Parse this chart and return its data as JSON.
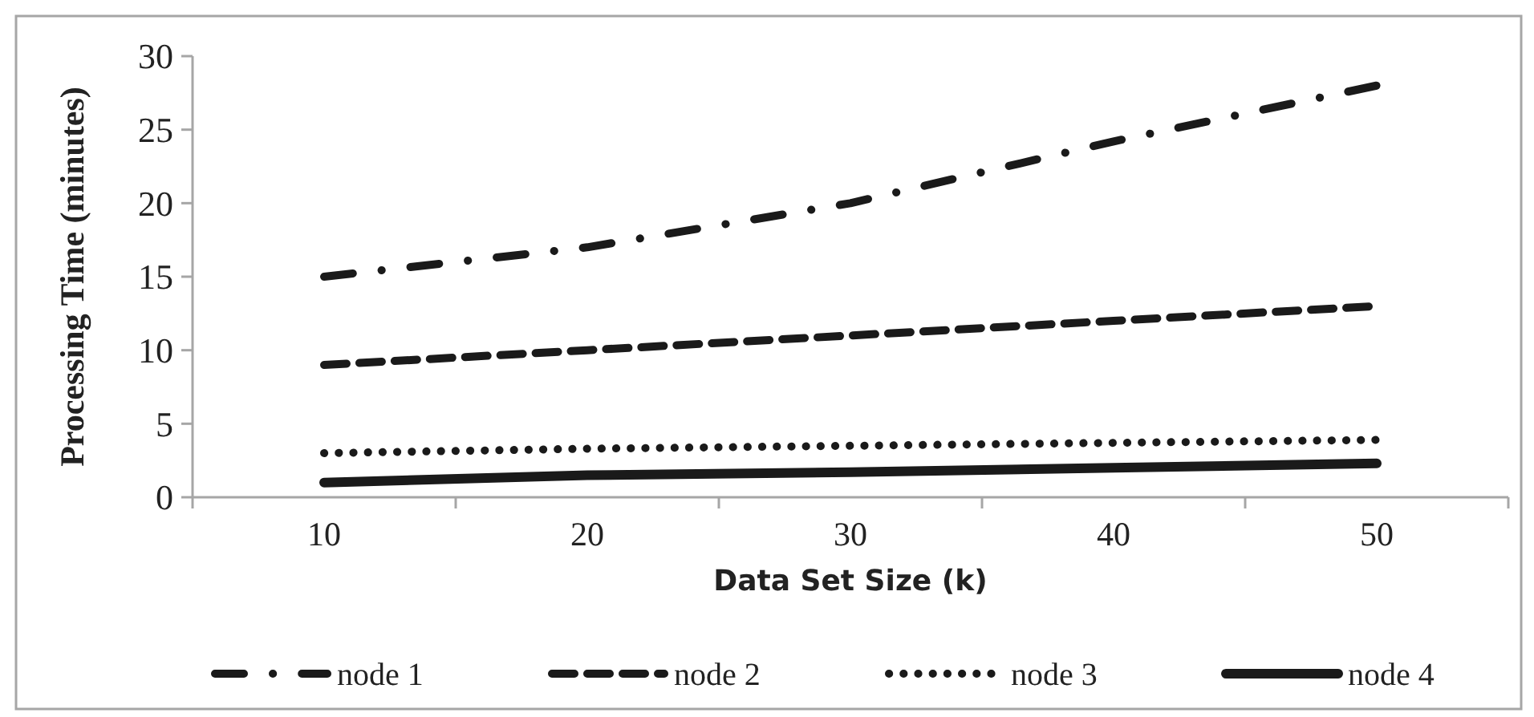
{
  "chart_data": {
    "type": "line",
    "xlabel": "Data Set Size (k)",
    "ylabel": "Processing Time (minutes)",
    "categories": [
      "10",
      "20",
      "30",
      "40",
      "50"
    ],
    "ylim": [
      0,
      30
    ],
    "yticks": [
      0,
      5,
      10,
      15,
      20,
      25,
      30
    ],
    "grid": false,
    "legend": "bottom",
    "marker": "none",
    "series": [
      {
        "name": "node 1",
        "color": "#1a1a1a",
        "line_style": "dashdot",
        "values": [
          15,
          17,
          20,
          24.2,
          28
        ]
      },
      {
        "name": "node 2",
        "color": "#1a1a1a",
        "line_style": "dashed",
        "values": [
          9,
          10,
          11,
          12,
          13
        ]
      },
      {
        "name": "node 3",
        "color": "#1a1a1a",
        "line_style": "dotted",
        "values": [
          3,
          3.3,
          3.5,
          3.7,
          3.9
        ]
      },
      {
        "name": "node 4",
        "color": "#1a1a1a",
        "line_style": "solid",
        "values": [
          1,
          1.5,
          1.7,
          2,
          2.3
        ]
      }
    ]
  }
}
